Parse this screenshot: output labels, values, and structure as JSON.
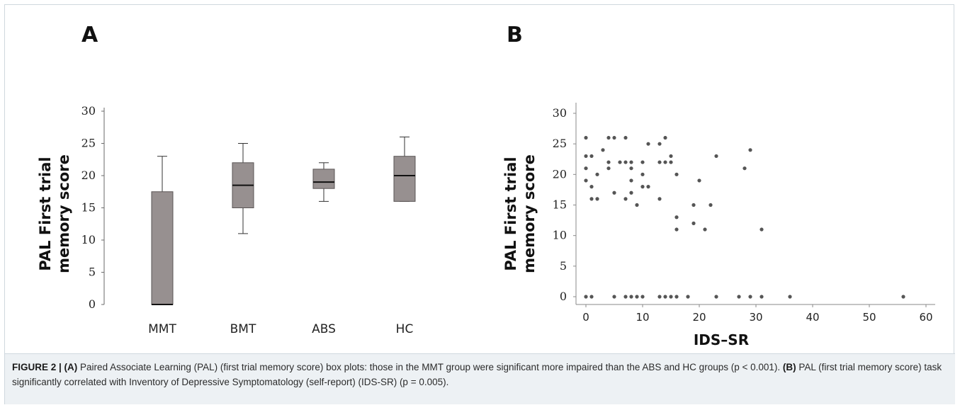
{
  "panels": {
    "a_label": "A",
    "b_label": "B"
  },
  "chart_data": [
    {
      "type": "box",
      "panel": "A",
      "ylabel_line1": "PAL First trial",
      "ylabel_line2": "memory score",
      "xlabel": "",
      "ylim": [
        0,
        30
      ],
      "yticks": [
        0,
        5,
        10,
        15,
        20,
        25,
        30
      ],
      "categories": [
        "MMT",
        "BMT",
        "ABS",
        "HC"
      ],
      "boxes": [
        {
          "min": 0,
          "q1": 0,
          "median": 0,
          "q3": 17.5,
          "max": 23
        },
        {
          "min": 11,
          "q1": 15,
          "median": 18.5,
          "q3": 22,
          "max": 25
        },
        {
          "min": 16,
          "q1": 18,
          "median": 19,
          "q3": 21,
          "max": 22
        },
        {
          "min": 16,
          "q1": 16,
          "median": 20,
          "q3": 23,
          "max": 26
        }
      ],
      "box_color": "#979090",
      "grid": false
    },
    {
      "type": "scatter",
      "panel": "B",
      "ylabel_line1": "PAL First trial",
      "ylabel_line2": "memory score",
      "xlabel": "IDS–SR",
      "xlim": [
        -2,
        62
      ],
      "ylim": [
        -1,
        31
      ],
      "xticks": [
        0,
        10,
        20,
        30,
        40,
        50,
        60
      ],
      "yticks": [
        0,
        5,
        10,
        15,
        20,
        25,
        30
      ],
      "points": [
        [
          0,
          26
        ],
        [
          0,
          23
        ],
        [
          0,
          21
        ],
        [
          0,
          19
        ],
        [
          1,
          23
        ],
        [
          1,
          18
        ],
        [
          1,
          16
        ],
        [
          2,
          16
        ],
        [
          2,
          20
        ],
        [
          3,
          24
        ],
        [
          4,
          26
        ],
        [
          4,
          22
        ],
        [
          4,
          21
        ],
        [
          5,
          26
        ],
        [
          5,
          17
        ],
        [
          6,
          22
        ],
        [
          7,
          26
        ],
        [
          7,
          22
        ],
        [
          7,
          16
        ],
        [
          8,
          22
        ],
        [
          8,
          21
        ],
        [
          8,
          17
        ],
        [
          8,
          19
        ],
        [
          9,
          15
        ],
        [
          10,
          22
        ],
        [
          10,
          20
        ],
        [
          10,
          18
        ],
        [
          11,
          25
        ],
        [
          11,
          18
        ],
        [
          13,
          25
        ],
        [
          13,
          22
        ],
        [
          13,
          16
        ],
        [
          14,
          26
        ],
        [
          14,
          22
        ],
        [
          15,
          23
        ],
        [
          15,
          22
        ],
        [
          16,
          20
        ],
        [
          16,
          13
        ],
        [
          16,
          11
        ],
        [
          19,
          15
        ],
        [
          19,
          12
        ],
        [
          20,
          19
        ],
        [
          21,
          11
        ],
        [
          22,
          15
        ],
        [
          23,
          23
        ],
        [
          28,
          21
        ],
        [
          29,
          24
        ],
        [
          31,
          11
        ],
        [
          0,
          0
        ],
        [
          1,
          0
        ],
        [
          5,
          0
        ],
        [
          7,
          0
        ],
        [
          8,
          0
        ],
        [
          9,
          0
        ],
        [
          10,
          0
        ],
        [
          13,
          0
        ],
        [
          14,
          0
        ],
        [
          15,
          0
        ],
        [
          16,
          0
        ],
        [
          18,
          0
        ],
        [
          23,
          0
        ],
        [
          27,
          0
        ],
        [
          29,
          0
        ],
        [
          31,
          0
        ],
        [
          36,
          0
        ],
        [
          56,
          0
        ]
      ],
      "point_color": "#555555",
      "grid": false
    }
  ],
  "caption": {
    "figure_label": "FIGURE 2 | ",
    "a_tag": "(A)",
    "a_text": " Paired Associate Learning (PAL) (first trial memory score) box plots: those in the MMT group were significant more impaired than the ABS and HC groups (p < 0.001). ",
    "b_tag": "(B)",
    "b_text": " PAL (first trial memory score) task significantly correlated with Inventory of Depressive Symptomatology (self-report) (IDS-SR) (p = 0.005)."
  }
}
